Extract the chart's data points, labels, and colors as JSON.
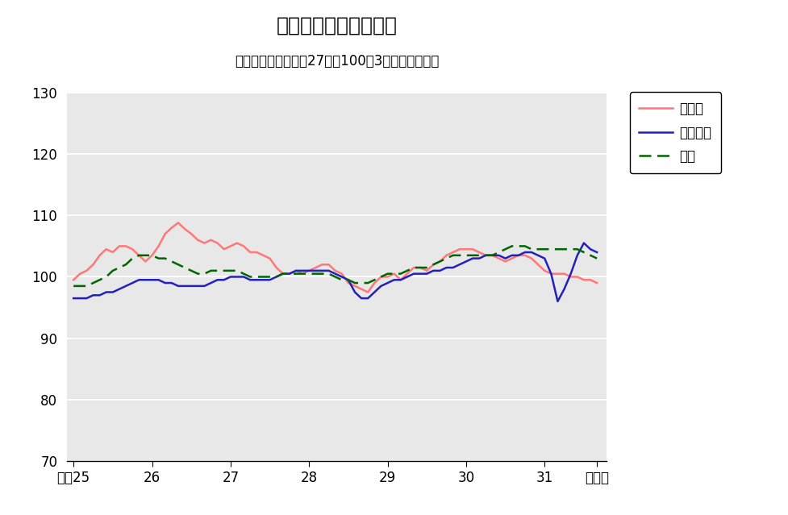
{
  "title": "鉱工業生産指数の推移",
  "subtitle": "（季節調整済、平成27年＝100、3ヶ月移動平均）",
  "ylim": [
    70,
    130
  ],
  "yticks": [
    70,
    80,
    90,
    100,
    110,
    120,
    130
  ],
  "background_color": "#e8e8e8",
  "outer_background": "#ffffff",
  "title_fontsize": 18,
  "subtitle_fontsize": 12,
  "legend_fontsize": 12,
  "tick_fontsize": 12,
  "series_tottori_label": "鳥取県",
  "series_tottori_color": "#ff7777",
  "series_chugoku_label": "中国地方",
  "series_chugoku_color": "#2222bb",
  "series_zenkoku_label": "全国",
  "series_zenkoku_color": "#006600",
  "x_tick_positions": [
    0,
    12,
    24,
    36,
    48,
    60,
    72,
    80
  ],
  "x_tick_labels": [
    "平成25",
    "26",
    "27",
    "28",
    "29",
    "30",
    "31",
    "令和元"
  ],
  "n_points": 81,
  "tottori": [
    99.5,
    100.5,
    101.0,
    102.0,
    103.5,
    104.5,
    104.0,
    105.0,
    105.0,
    104.5,
    103.5,
    102.5,
    103.5,
    105.0,
    107.0,
    108.0,
    108.8,
    107.8,
    107.0,
    106.0,
    105.5,
    106.0,
    105.5,
    104.5,
    105.0,
    105.5,
    105.0,
    104.0,
    104.0,
    103.5,
    103.0,
    101.5,
    100.5,
    100.5,
    101.0,
    100.5,
    101.0,
    101.5,
    102.0,
    102.0,
    101.0,
    100.5,
    99.0,
    98.5,
    98.0,
    97.5,
    99.0,
    100.0,
    100.0,
    100.5,
    99.5,
    100.5,
    101.5,
    101.5,
    101.0,
    102.0,
    102.5,
    103.5,
    104.0,
    104.5,
    104.5,
    104.5,
    104.0,
    103.5,
    103.5,
    103.0,
    102.5,
    103.0,
    103.5,
    103.5,
    103.0,
    102.0,
    101.0,
    100.5,
    100.5,
    100.5,
    100.0,
    100.0,
    99.5,
    99.5,
    99.0
  ],
  "chugoku": [
    96.5,
    96.5,
    96.5,
    97.0,
    97.0,
    97.5,
    97.5,
    98.0,
    98.5,
    99.0,
    99.5,
    99.5,
    99.5,
    99.5,
    99.0,
    99.0,
    98.5,
    98.5,
    98.5,
    98.5,
    98.5,
    99.0,
    99.5,
    99.5,
    100.0,
    100.0,
    100.0,
    99.5,
    99.5,
    99.5,
    99.5,
    100.0,
    100.5,
    100.5,
    101.0,
    101.0,
    101.0,
    101.0,
    101.0,
    101.0,
    100.5,
    100.0,
    99.5,
    97.5,
    96.5,
    96.5,
    97.5,
    98.5,
    99.0,
    99.5,
    99.5,
    100.0,
    100.5,
    100.5,
    100.5,
    101.0,
    101.0,
    101.5,
    101.5,
    102.0,
    102.5,
    103.0,
    103.0,
    103.5,
    103.5,
    103.5,
    103.0,
    103.5,
    103.5,
    104.0,
    104.0,
    103.5,
    103.0,
    100.5,
    96.0,
    98.0,
    100.5,
    103.5,
    105.5,
    104.5,
    104.0
  ],
  "zenkoku": [
    98.5,
    98.5,
    98.5,
    99.0,
    99.5,
    100.0,
    101.0,
    101.5,
    102.0,
    103.0,
    103.5,
    103.5,
    103.5,
    103.0,
    103.0,
    102.5,
    102.0,
    101.5,
    101.0,
    100.5,
    100.5,
    101.0,
    101.0,
    101.0,
    101.0,
    101.0,
    100.5,
    100.0,
    100.0,
    100.0,
    100.0,
    100.0,
    100.5,
    100.5,
    100.5,
    100.5,
    100.5,
    100.5,
    100.5,
    100.5,
    100.0,
    99.5,
    99.5,
    99.0,
    99.0,
    99.0,
    99.5,
    100.0,
    100.5,
    100.5,
    100.5,
    101.0,
    101.5,
    101.5,
    101.5,
    102.0,
    102.5,
    103.0,
    103.5,
    103.5,
    103.5,
    103.5,
    103.5,
    103.5,
    103.5,
    104.0,
    104.5,
    105.0,
    105.0,
    105.0,
    104.5,
    104.5,
    104.5,
    104.5,
    104.5,
    104.5,
    104.5,
    104.5,
    104.0,
    103.5,
    103.0
  ]
}
